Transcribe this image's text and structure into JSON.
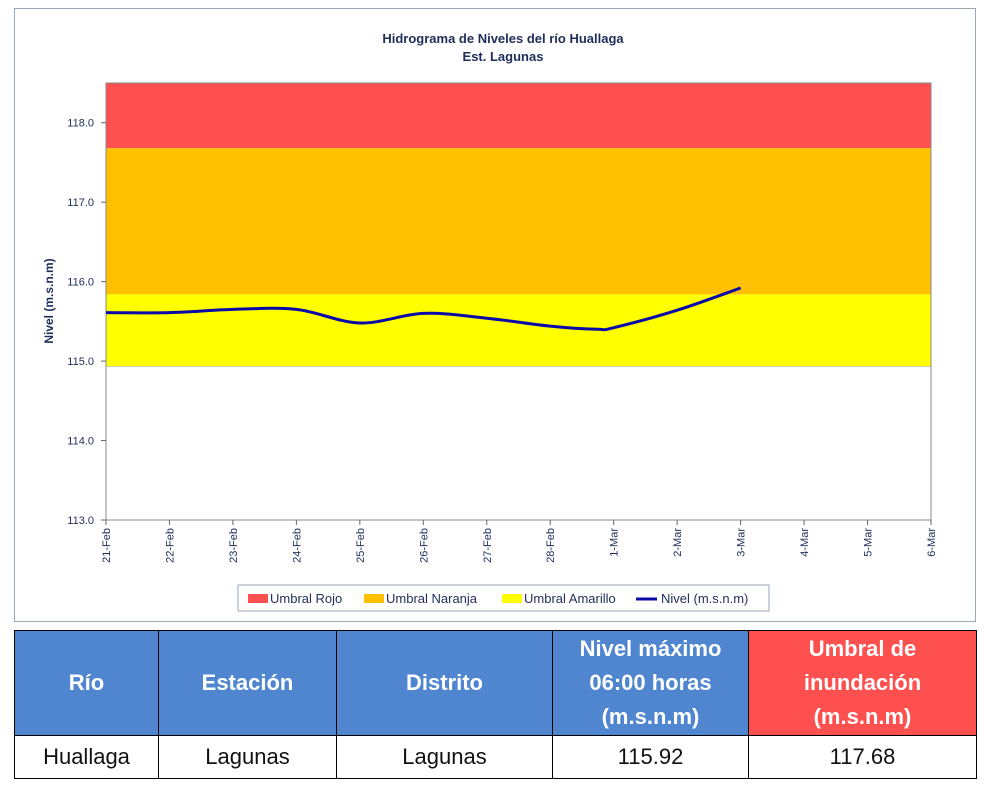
{
  "chart_data": {
    "type": "line",
    "title": "Hidrograma de Niveles del río Huallaga",
    "subtitle": "Est. Lagunas",
    "ylabel": "Nivel (m.s.n.m)",
    "xlabel": "",
    "ylim": [
      113.0,
      118.5
    ],
    "yticks": [
      "113.0",
      "114.0",
      "115.0",
      "116.0",
      "117.0",
      "118.0"
    ],
    "categories": [
      "21-Feb",
      "22-Feb",
      "23-Feb",
      "24-Feb",
      "25-Feb",
      "26-Feb",
      "27-Feb",
      "28-Feb",
      "1-Mar",
      "2-Mar",
      "3-Mar",
      "4-Mar",
      "5-Mar",
      "6-Mar"
    ],
    "thresholds": {
      "amarillo": [
        114.93,
        115.84
      ],
      "naranja": [
        115.84,
        117.68
      ],
      "rojo": [
        117.68,
        118.5
      ]
    },
    "series": [
      {
        "name": "Nivel (m.s.n.m)",
        "x": [
          0,
          1,
          2,
          3,
          4,
          5,
          6,
          7,
          7.75,
          8,
          9,
          10
        ],
        "values": [
          115.61,
          115.61,
          115.65,
          115.65,
          115.48,
          115.6,
          115.54,
          115.44,
          115.4,
          115.42,
          115.64,
          115.92
        ]
      }
    ],
    "legend": [
      "Umbral Rojo",
      "Umbral Naranja",
      "Umbral Amarillo",
      "Nivel (m.s.n.m)"
    ],
    "legend_position": "bottom",
    "colors": {
      "rojo": "#ff5050",
      "naranja": "#ffc000",
      "amarillo": "#ffff00",
      "line": "#0a0aa8"
    }
  },
  "table": {
    "headers": [
      "Río",
      "Estación",
      "Distrito",
      "Nivel máximo 06:00 horas (m.s.n.m)",
      "Umbral de inundación (m.s.n.m)"
    ],
    "row": [
      "Huallaga",
      "Lagunas",
      "Lagunas",
      "115.92",
      "117.68"
    ]
  }
}
